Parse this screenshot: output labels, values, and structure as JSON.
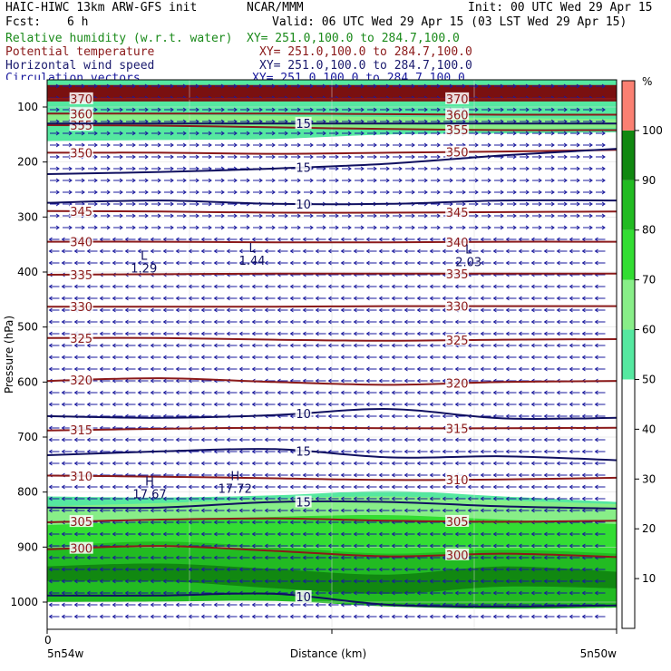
{
  "header": {
    "model": "HAIC-HIWC 13km ARW-GFS init",
    "org": "NCAR/MMM",
    "init": "Init: 00 UTC Wed 29 Apr 15",
    "fcst_label": "Fcst:",
    "fcst_value": "6 h",
    "valid": "Valid: 06 UTC Wed 29 Apr 15 (03 LST Wed 29 Apr 15)"
  },
  "fields": [
    {
      "name": "Relative humidity (w.r.t. water)",
      "xy": "XY= 251.0,100.0 to 284.7,100.0",
      "color": "#1a8a1a"
    },
    {
      "name": "Potential temperature",
      "xy": "XY= 251.0,100.0 to 284.7,100.0",
      "color": "#8b1a1a"
    },
    {
      "name": "Horizontal wind speed",
      "xy": "XY= 251.0,100.0 to 284.7,100.0",
      "color": "#1a1a6e"
    },
    {
      "name": "Circulation vectors",
      "xy": "XY= 251.0,100.0 to 284.7,100.0",
      "color": "#1a1a9e"
    }
  ],
  "chart_data": {
    "type": "heatmap",
    "title": "Relative humidity (w.r.t. water), Potential temperature, Horizontal wind speed, Circulation vectors",
    "xlabel": "Distance (km)",
    "ylabel": "Pressure (hPa)",
    "x_tick_labels": {
      "start": "0",
      "left_end": "5n54w",
      "right_end": "5n50w"
    },
    "y_ticks": [
      100,
      200,
      300,
      400,
      500,
      600,
      700,
      800,
      900,
      1000
    ],
    "y_tick_labels": [
      "100",
      "200",
      "300",
      "400",
      "500",
      "600",
      "700",
      "800",
      "900",
      "1000"
    ],
    "ylim": [
      1050,
      65
    ],
    "colorbar": {
      "unit": "%",
      "tick_labels": [
        "10",
        "20",
        "30",
        "40",
        "50",
        "60",
        "70",
        "80",
        "90",
        "100"
      ],
      "levels": [
        0,
        50,
        60,
        70,
        80,
        90,
        100,
        110
      ],
      "colors": [
        "#ffffff",
        "#55e8a0",
        "#88ee88",
        "#33dd33",
        "#22bb22",
        "#118811",
        "#fa8072"
      ]
    },
    "theta_contours": [
      {
        "label": "370",
        "p": [
          85,
          85,
          85,
          85,
          85,
          85
        ]
      },
      {
        "label": "360",
        "p": [
          112,
          112,
          112,
          113,
          114,
          114
        ]
      },
      {
        "label": "355",
        "p": [
          133,
          134,
          137,
          140,
          142,
          142
        ]
      },
      {
        "label": "350",
        "p": [
          183,
          183,
          185,
          183,
          181,
          178
        ]
      },
      {
        "label": "345",
        "p": [
          289,
          290,
          292,
          292,
          291,
          290
        ]
      },
      {
        "label": "340",
        "p": [
          345,
          345,
          346,
          346,
          345,
          345
        ]
      },
      {
        "label": "335",
        "p": [
          405,
          404,
          403,
          403,
          403,
          403
        ]
      },
      {
        "label": "330",
        "p": [
          463,
          463,
          463,
          462,
          462,
          462
        ]
      },
      {
        "label": "325",
        "p": [
          520,
          520,
          523,
          525,
          523,
          522
        ]
      },
      {
        "label": "320",
        "p": [
          598,
          593,
          600,
          605,
          600,
          598
        ]
      },
      {
        "label": "315",
        "p": [
          688,
          685,
          683,
          684,
          684,
          683
        ]
      },
      {
        "label": "310",
        "p": [
          770,
          772,
          775,
          778,
          777,
          774
        ]
      },
      {
        "label": "305",
        "p": [
          855,
          850,
          848,
          852,
          854,
          852
        ]
      },
      {
        "label": "300",
        "p": [
          904,
          898,
          907,
          917,
          912,
          918
        ]
      }
    ],
    "wind_speed_contours": [
      {
        "label": "15",
        "p": [
          130,
          130,
          130,
          130,
          130,
          130
        ]
      },
      {
        "label": "15",
        "p": [
          222,
          218,
          212,
          203,
          188,
          176
        ]
      },
      {
        "label": "10",
        "p": [
          274,
          270,
          276,
          276,
          270,
          270
        ]
      },
      {
        "label": "10",
        "p": [
          662,
          665,
          660,
          649,
          666,
          665
        ]
      },
      {
        "label": "15",
        "p": [
          733,
          726,
          722,
          737,
          735,
          742
        ]
      },
      {
        "label": "15",
        "p": [
          828,
          828,
          818,
          818,
          826,
          830
        ]
      },
      {
        "label": "10",
        "p": [
          988,
          988,
          985,
          1005,
          1008,
          1006
        ]
      }
    ],
    "wind_vectors": {
      "direction_upper": "east",
      "direction_lower": "west",
      "transition_p": 330
    },
    "annotations": [
      {
        "text": "L",
        "value": "1.29"
      },
      {
        "text": "L",
        "value": "1.44"
      },
      {
        "text": "L",
        "value": "2.03"
      },
      {
        "text": "H",
        "value": "17.67"
      },
      {
        "text": "H",
        "value": "17.72"
      }
    ]
  }
}
